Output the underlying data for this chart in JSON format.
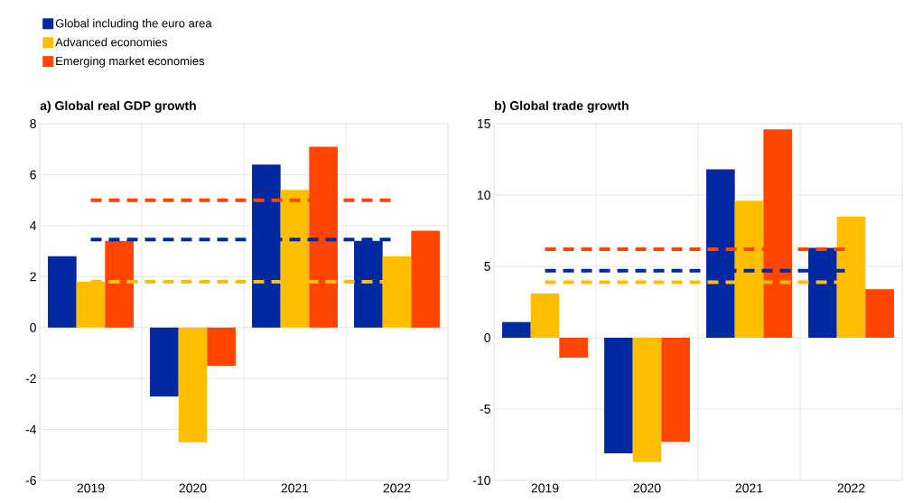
{
  "chart_data": [
    {
      "type": "bar",
      "title": "a) Global real GDP growth",
      "categories": [
        "2019",
        "2020",
        "2021",
        "2022"
      ],
      "series": [
        {
          "name": "Global including the euro area",
          "color": "#0028a0",
          "values": [
            2.8,
            -2.7,
            6.4,
            3.4
          ]
        },
        {
          "name": "Advanced economies",
          "color": "#ffbf00",
          "values": [
            1.8,
            -4.5,
            5.4,
            2.8
          ]
        },
        {
          "name": "Emerging market economies",
          "color": "#ff4500",
          "values": [
            3.4,
            -1.5,
            7.1,
            3.8
          ]
        }
      ],
      "ylim": [
        -6,
        8
      ],
      "yticks": [
        -6,
        -4,
        -2,
        0,
        2,
        4,
        6,
        8
      ],
      "grid": true,
      "legend": "top left",
      "ref_lines": [
        {
          "axis": "y",
          "value": 3.45,
          "color": "#0028a0",
          "line_style": "dashed"
        },
        {
          "axis": "y",
          "value": 1.8,
          "color": "#ffbf00",
          "line_style": "dashed"
        },
        {
          "axis": "y",
          "value": 5.0,
          "color": "#ff4500",
          "line_style": "dashed"
        }
      ]
    },
    {
      "type": "bar",
      "title": "b) Global trade growth",
      "categories": [
        "2019",
        "2020",
        "2021",
        "2022"
      ],
      "series": [
        {
          "color": "#0028a0",
          "values": [
            1.1,
            -8.1,
            11.8,
            6.3
          ]
        },
        {
          "color": "#ffbf00",
          "values": [
            3.1,
            -8.7,
            9.6,
            8.5
          ]
        },
        {
          "color": "#ff4500",
          "values": [
            -1.4,
            -7.3,
            14.6,
            3.4
          ]
        }
      ],
      "ylim": [
        -10,
        15
      ],
      "yticks": [
        -10,
        -5,
        0,
        5,
        10,
        15
      ],
      "grid": true,
      "ref_lines": [
        {
          "axis": "y",
          "value": 4.7,
          "color": "#0028a0",
          "line_style": "dashed"
        },
        {
          "axis": "y",
          "value": 3.9,
          "color": "#ffbf00",
          "line_style": "dashed"
        },
        {
          "axis": "y",
          "value": 6.2,
          "color": "#ff4500",
          "line_style": "dashed"
        }
      ]
    }
  ]
}
